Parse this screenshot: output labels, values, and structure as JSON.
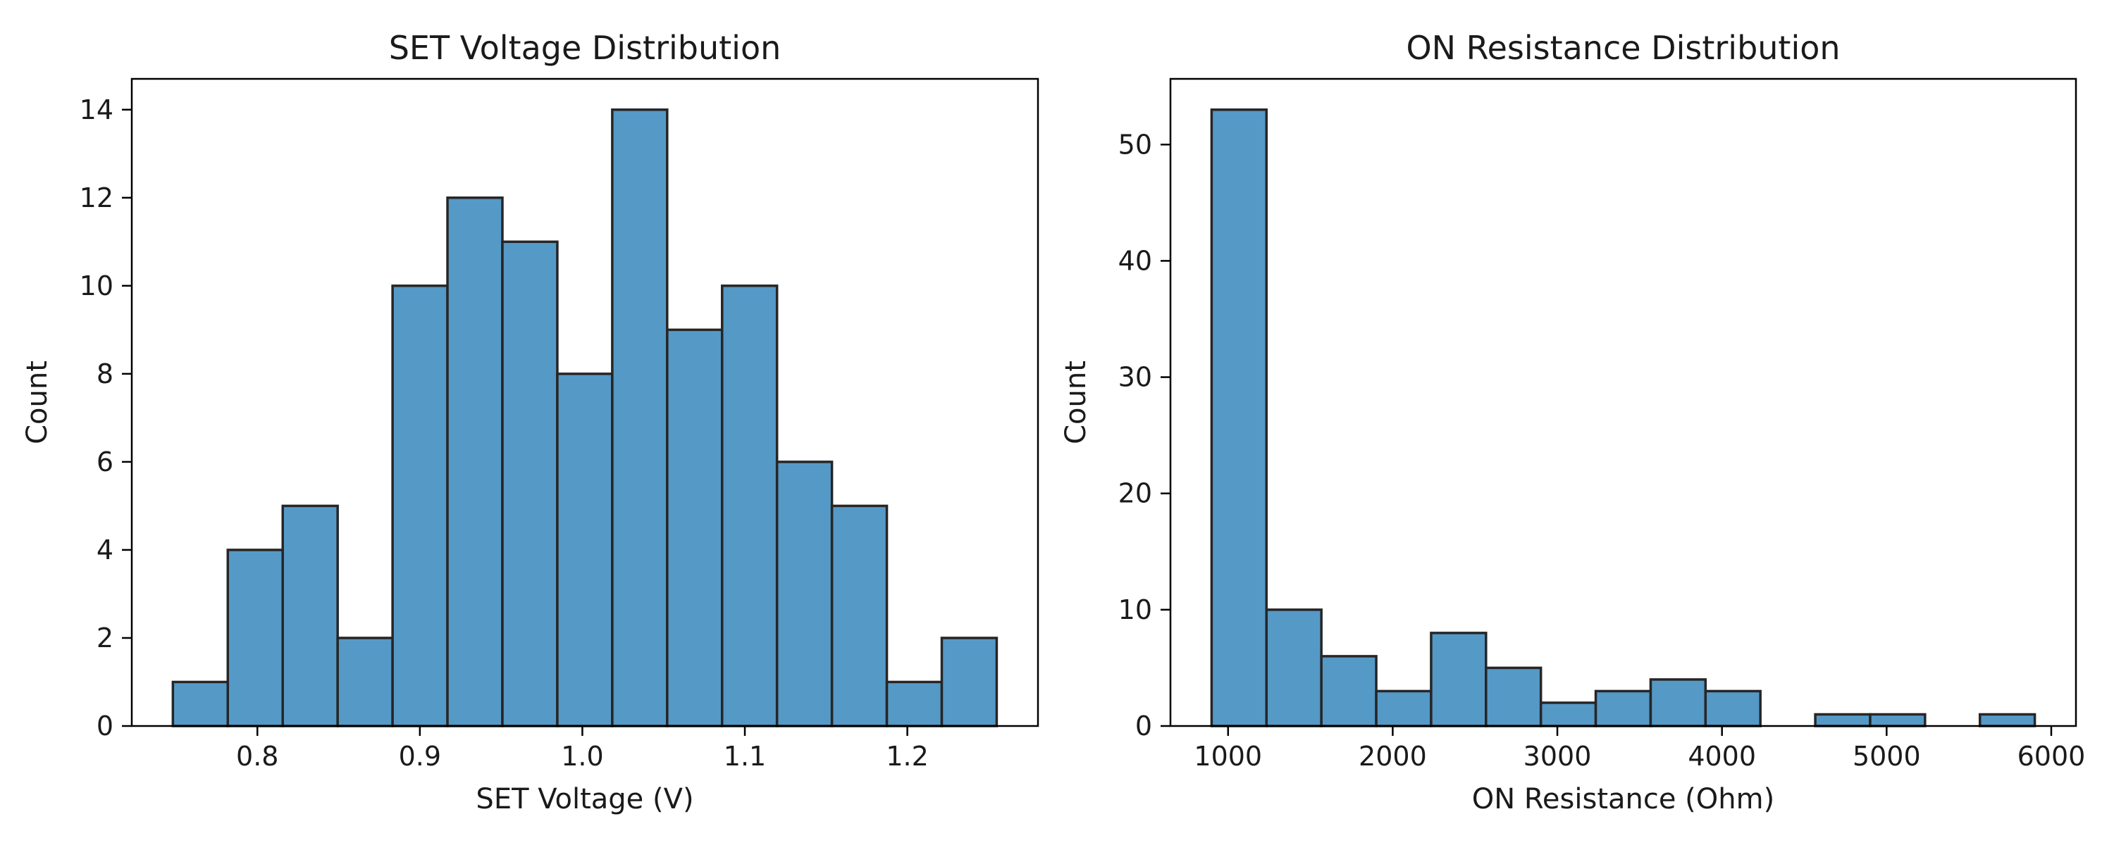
{
  "chart_data": [
    {
      "type": "bar",
      "title": "SET Voltage Distribution",
      "xlabel": "SET Voltage (V)",
      "ylabel": "Count",
      "bin_edges": [
        0.748,
        0.7818,
        0.8156,
        0.8494,
        0.8832,
        0.917,
        0.9508,
        0.9846,
        1.0184,
        1.0522,
        1.086,
        1.1198,
        1.1536,
        1.1874,
        1.2212,
        1.255
      ],
      "values": [
        1,
        4,
        5,
        2,
        10,
        12,
        11,
        8,
        14,
        9,
        10,
        6,
        5,
        1,
        2
      ],
      "xlim": [
        0.7227,
        1.2804
      ],
      "ylim": [
        0,
        14.7
      ],
      "xticks": [
        0.8,
        0.9,
        1.0,
        1.1,
        1.2
      ],
      "xtick_labels": [
        "0.8",
        "0.9",
        "1.0",
        "1.1",
        "1.2"
      ],
      "yticks": [
        0,
        2,
        4,
        6,
        8,
        10,
        12,
        14
      ],
      "ytick_labels": [
        "0",
        "2",
        "4",
        "6",
        "8",
        "10",
        "12",
        "14"
      ],
      "color": "#5599c7",
      "edge_color": "#262626",
      "grid": false
    },
    {
      "type": "bar",
      "title": "ON Resistance Distribution",
      "xlabel": "ON Resistance (Ohm)",
      "ylabel": "Count",
      "bin_edges": [
        900,
        1233.3,
        1566.7,
        1900,
        2233.3,
        2566.7,
        2900,
        3233.3,
        3566.7,
        3900,
        4233.3,
        4566.7,
        4900,
        5233.3,
        5566.7,
        5900
      ],
      "values": [
        53,
        10,
        6,
        3,
        8,
        5,
        2,
        3,
        4,
        3,
        0,
        1,
        1,
        0,
        1
      ],
      "xlim": [
        650,
        6150
      ],
      "ylim": [
        0,
        55.65
      ],
      "xticks": [
        1000,
        2000,
        3000,
        4000,
        5000,
        6000
      ],
      "xtick_labels": [
        "1000",
        "2000",
        "3000",
        "4000",
        "5000",
        "6000"
      ],
      "yticks": [
        0,
        10,
        20,
        30,
        40,
        50
      ],
      "ytick_labels": [
        "0",
        "10",
        "20",
        "30",
        "40",
        "50"
      ],
      "color": "#5599c7",
      "edge_color": "#262626",
      "grid": false
    }
  ]
}
